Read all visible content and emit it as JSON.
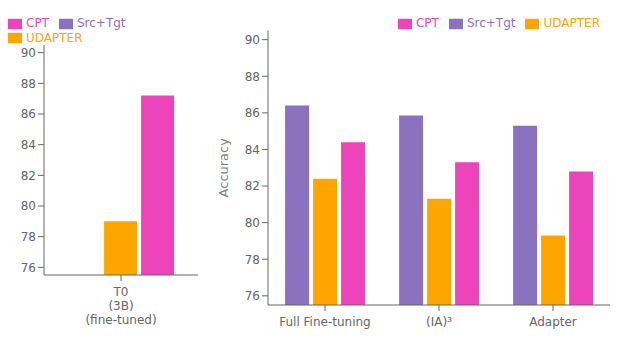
{
  "chart_data": [
    {
      "type": "bar",
      "categories": [
        "T0\n(3B)\n(fine-tuned)"
      ],
      "series": [
        {
          "name": "Src+Tgt",
          "color": "#8B72BE",
          "values": [
            null
          ]
        },
        {
          "name": "UDAPTER",
          "color": "#FFA500",
          "values": [
            79.0
          ]
        },
        {
          "name": "CPT",
          "color": "#EE44BB",
          "values": [
            87.2
          ]
        }
      ],
      "ylim": [
        75.5,
        90.5
      ],
      "yticks": [
        76,
        78,
        80,
        82,
        84,
        86,
        88,
        90
      ],
      "legend": "upper left",
      "grid": false
    },
    {
      "type": "bar",
      "categories": [
        "Full Fine-tuning",
        "(IA)³",
        "Adapter"
      ],
      "series": [
        {
          "name": "Src+Tgt",
          "color": "#8B72BE",
          "values": [
            86.4,
            85.85,
            85.3
          ]
        },
        {
          "name": "UDAPTER",
          "color": "#FFA500",
          "values": [
            82.4,
            81.3,
            79.3
          ]
        },
        {
          "name": "CPT",
          "color": "#EE44BB",
          "values": [
            84.4,
            83.3,
            82.8
          ]
        }
      ],
      "ylabel": "Accuracy",
      "ylim": [
        75.5,
        90.5
      ],
      "yticks": [
        76,
        78,
        80,
        82,
        84,
        86,
        88,
        90
      ],
      "legend": "upper right",
      "grid": false
    }
  ]
}
